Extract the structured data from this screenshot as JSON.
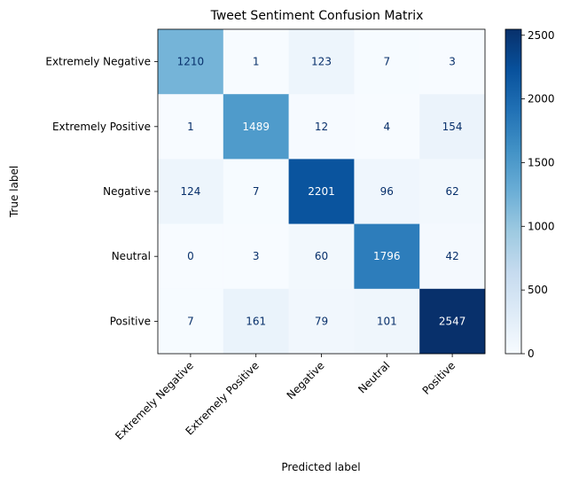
{
  "chart_data": {
    "type": "heatmap",
    "title": "Tweet Sentiment Confusion Matrix",
    "xlabel": "Predicted label",
    "ylabel": "True label",
    "x_categories": [
      "Extremely Negative",
      "Extremely Positive",
      "Negative",
      "Neutral",
      "Positive"
    ],
    "y_categories": [
      "Extremely Negative",
      "Extremely Positive",
      "Negative",
      "Neutral",
      "Positive"
    ],
    "values": [
      [
        1210,
        1,
        123,
        7,
        3
      ],
      [
        1,
        1489,
        12,
        4,
        154
      ],
      [
        124,
        7,
        2201,
        96,
        62
      ],
      [
        0,
        3,
        60,
        1796,
        42
      ],
      [
        7,
        161,
        79,
        101,
        2547
      ]
    ],
    "colormap": "Blues",
    "colorbar": {
      "min": 0,
      "max": 2547,
      "ticks": [
        0,
        500,
        1000,
        1500,
        2000,
        2500
      ],
      "tick_labels": [
        "0",
        "500",
        "1000",
        "1500",
        "2000",
        "2500"
      ]
    },
    "grid": false
  }
}
